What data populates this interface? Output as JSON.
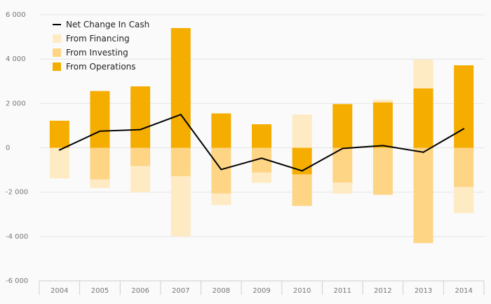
{
  "chart_data": {
    "type": "bar",
    "subtype": "stacked-bar-with-line",
    "categories": [
      "2004",
      "2005",
      "2006",
      "2007",
      "2008",
      "2009",
      "2010",
      "2011",
      "2012",
      "2013",
      "2014"
    ],
    "y_ticks": [
      "6 000",
      "4 000",
      "2 000",
      "0",
      "-2 000",
      "-4 000",
      "-6 000"
    ],
    "y_tick_values": [
      6000,
      4000,
      2000,
      0,
      -2000,
      -4000,
      -6000
    ],
    "ylim": [
      -6000,
      6000
    ],
    "series": [
      {
        "name": "From Operations",
        "kind": "bar",
        "color": "#f5ad00",
        "values": [
          1220,
          2560,
          2770,
          5400,
          1550,
          1060,
          -1200,
          1970,
          2050,
          2680,
          3720
        ]
      },
      {
        "name": "From Investing",
        "kind": "bar",
        "color": "#fdd585",
        "values": [
          0,
          -1430,
          -830,
          -1280,
          -2060,
          -1120,
          -1420,
          -1570,
          -2120,
          -4300,
          -1770
        ]
      },
      {
        "name": "From Financing",
        "kind": "bar",
        "color": "#feeac3",
        "values": [
          -1380,
          -380,
          -1180,
          -2720,
          -520,
          -460,
          1500,
          -500,
          120,
          1300,
          -1170
        ]
      },
      {
        "name": "Net Change In Cash",
        "kind": "line",
        "color": "#000000",
        "values": [
          -100,
          750,
          820,
          1500,
          -980,
          -470,
          -1040,
          -30,
          100,
          -200,
          860
        ]
      }
    ],
    "legend": {
      "position": "top-left",
      "items": [
        {
          "label": "Net Change In Cash",
          "symbol": "line",
          "color": "#000000"
        },
        {
          "label": "From Financing",
          "symbol": "square",
          "color": "#feeac3"
        },
        {
          "label": "From Investing",
          "symbol": "square",
          "color": "#fdd585"
        },
        {
          "label": "From Operations",
          "symbol": "square",
          "color": "#f5ad00"
        }
      ]
    },
    "colors": {
      "gridline": "#e4e4e4",
      "axis": "#cfcfcf",
      "tick_text": "#777777"
    }
  }
}
